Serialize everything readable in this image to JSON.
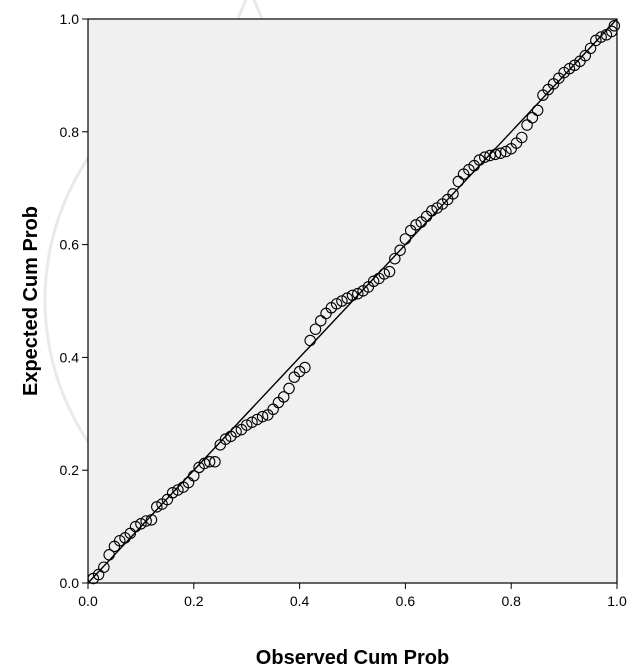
{
  "chart_data": {
    "type": "scatter",
    "xlabel": "Observed Cum Prob",
    "ylabel": "Expected Cum Prob",
    "xlim": [
      0.0,
      1.0
    ],
    "ylim": [
      0.0,
      1.0
    ],
    "x_ticks": [
      "0.0",
      "0.2",
      "0.4",
      "0.6",
      "0.8",
      "1.0"
    ],
    "y_ticks": [
      "0.0",
      "0.2",
      "0.4",
      "0.6",
      "0.8",
      "1.0"
    ],
    "grid": false,
    "plot_background": "#f0f0f0",
    "marker": "open-circle",
    "reference_line": [
      [
        0.0,
        0.0
      ],
      [
        1.0,
        1.0
      ]
    ],
    "points": [
      [
        0.01,
        0.008
      ],
      [
        0.02,
        0.015
      ],
      [
        0.03,
        0.028
      ],
      [
        0.04,
        0.05
      ],
      [
        0.05,
        0.065
      ],
      [
        0.06,
        0.075
      ],
      [
        0.07,
        0.08
      ],
      [
        0.08,
        0.088
      ],
      [
        0.09,
        0.1
      ],
      [
        0.1,
        0.105
      ],
      [
        0.11,
        0.11
      ],
      [
        0.12,
        0.112
      ],
      [
        0.13,
        0.135
      ],
      [
        0.14,
        0.14
      ],
      [
        0.15,
        0.148
      ],
      [
        0.16,
        0.16
      ],
      [
        0.17,
        0.165
      ],
      [
        0.18,
        0.17
      ],
      [
        0.19,
        0.178
      ],
      [
        0.2,
        0.19
      ],
      [
        0.21,
        0.205
      ],
      [
        0.22,
        0.212
      ],
      [
        0.23,
        0.215
      ],
      [
        0.24,
        0.215
      ],
      [
        0.25,
        0.245
      ],
      [
        0.26,
        0.255
      ],
      [
        0.27,
        0.26
      ],
      [
        0.28,
        0.268
      ],
      [
        0.29,
        0.272
      ],
      [
        0.3,
        0.28
      ],
      [
        0.31,
        0.285
      ],
      [
        0.32,
        0.29
      ],
      [
        0.33,
        0.295
      ],
      [
        0.34,
        0.298
      ],
      [
        0.35,
        0.308
      ],
      [
        0.36,
        0.32
      ],
      [
        0.37,
        0.33
      ],
      [
        0.38,
        0.345
      ],
      [
        0.39,
        0.365
      ],
      [
        0.4,
        0.375
      ],
      [
        0.41,
        0.382
      ],
      [
        0.42,
        0.43
      ],
      [
        0.43,
        0.45
      ],
      [
        0.44,
        0.465
      ],
      [
        0.45,
        0.478
      ],
      [
        0.46,
        0.488
      ],
      [
        0.47,
        0.495
      ],
      [
        0.48,
        0.5
      ],
      [
        0.49,
        0.505
      ],
      [
        0.5,
        0.51
      ],
      [
        0.51,
        0.513
      ],
      [
        0.52,
        0.518
      ],
      [
        0.53,
        0.525
      ],
      [
        0.54,
        0.535
      ],
      [
        0.55,
        0.54
      ],
      [
        0.56,
        0.548
      ],
      [
        0.57,
        0.552
      ],
      [
        0.58,
        0.575
      ],
      [
        0.59,
        0.59
      ],
      [
        0.6,
        0.61
      ],
      [
        0.61,
        0.625
      ],
      [
        0.62,
        0.635
      ],
      [
        0.63,
        0.64
      ],
      [
        0.64,
        0.65
      ],
      [
        0.65,
        0.66
      ],
      [
        0.66,
        0.665
      ],
      [
        0.67,
        0.672
      ],
      [
        0.68,
        0.68
      ],
      [
        0.69,
        0.69
      ],
      [
        0.7,
        0.712
      ],
      [
        0.71,
        0.725
      ],
      [
        0.72,
        0.733
      ],
      [
        0.73,
        0.74
      ],
      [
        0.74,
        0.75
      ],
      [
        0.75,
        0.755
      ],
      [
        0.76,
        0.758
      ],
      [
        0.77,
        0.76
      ],
      [
        0.78,
        0.762
      ],
      [
        0.79,
        0.765
      ],
      [
        0.8,
        0.77
      ],
      [
        0.81,
        0.78
      ],
      [
        0.82,
        0.79
      ],
      [
        0.83,
        0.812
      ],
      [
        0.84,
        0.825
      ],
      [
        0.85,
        0.838
      ],
      [
        0.86,
        0.865
      ],
      [
        0.87,
        0.875
      ],
      [
        0.88,
        0.885
      ],
      [
        0.89,
        0.895
      ],
      [
        0.9,
        0.905
      ],
      [
        0.91,
        0.912
      ],
      [
        0.92,
        0.918
      ],
      [
        0.93,
        0.925
      ],
      [
        0.94,
        0.935
      ],
      [
        0.95,
        0.948
      ],
      [
        0.96,
        0.962
      ],
      [
        0.97,
        0.968
      ],
      [
        0.98,
        0.972
      ],
      [
        0.99,
        0.978
      ],
      [
        0.995,
        0.988
      ]
    ]
  }
}
